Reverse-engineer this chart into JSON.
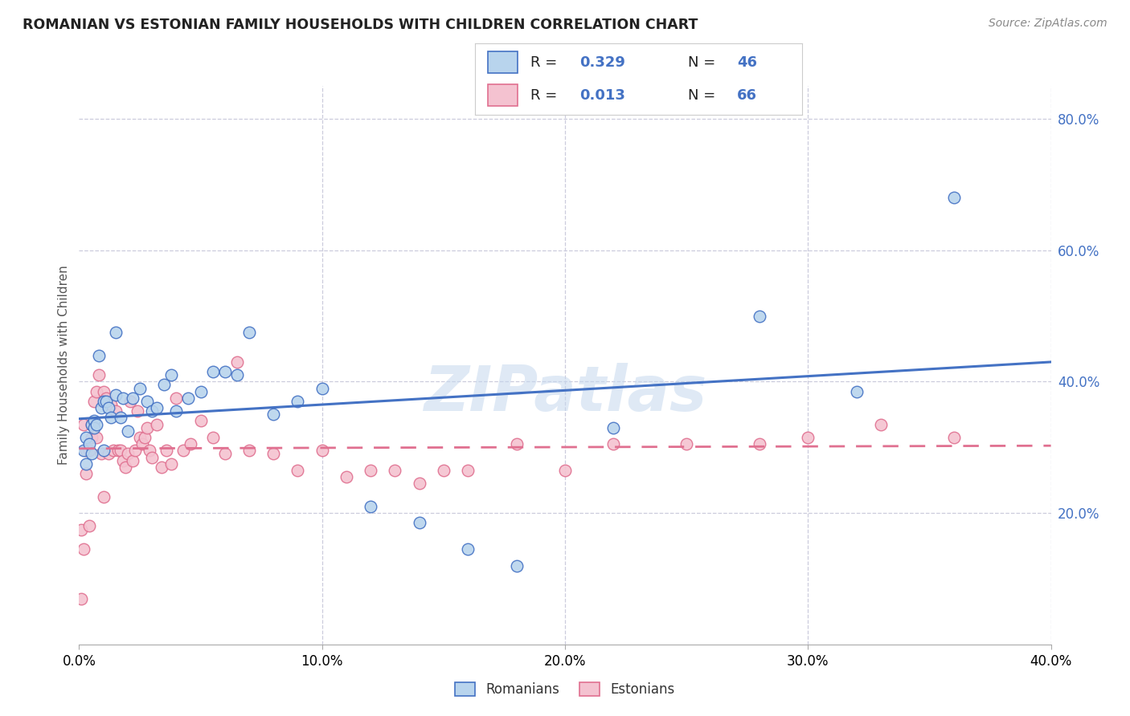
{
  "title": "ROMANIAN VS ESTONIAN FAMILY HOUSEHOLDS WITH CHILDREN CORRELATION CHART",
  "source": "Source: ZipAtlas.com",
  "ylabel": "Family Households with Children",
  "xlim": [
    0.0,
    0.4
  ],
  "ylim": [
    0.0,
    0.85
  ],
  "xtick_vals": [
    0.0,
    0.1,
    0.2,
    0.3,
    0.4
  ],
  "ytick_vals_right": [
    0.2,
    0.4,
    0.6,
    0.8
  ],
  "watermark": "ZIPatlas",
  "color_romanian_face": "#b8d4ed",
  "color_estonian_face": "#f4c2d0",
  "color_line_romanian": "#4472c4",
  "color_line_estonian": "#e07090",
  "background_color": "#ffffff",
  "grid_color": "#ccccdd",
  "romani_x": [
    0.002,
    0.003,
    0.003,
    0.004,
    0.005,
    0.005,
    0.006,
    0.006,
    0.007,
    0.008,
    0.009,
    0.01,
    0.01,
    0.011,
    0.012,
    0.013,
    0.015,
    0.015,
    0.017,
    0.018,
    0.02,
    0.022,
    0.025,
    0.028,
    0.03,
    0.032,
    0.035,
    0.038,
    0.04,
    0.045,
    0.05,
    0.055,
    0.06,
    0.065,
    0.07,
    0.08,
    0.09,
    0.1,
    0.12,
    0.14,
    0.16,
    0.18,
    0.22,
    0.28,
    0.32,
    0.36
  ],
  "romani_y": [
    0.295,
    0.275,
    0.315,
    0.305,
    0.29,
    0.335,
    0.34,
    0.33,
    0.335,
    0.44,
    0.36,
    0.295,
    0.37,
    0.37,
    0.36,
    0.345,
    0.475,
    0.38,
    0.345,
    0.375,
    0.325,
    0.375,
    0.39,
    0.37,
    0.355,
    0.36,
    0.395,
    0.41,
    0.355,
    0.375,
    0.385,
    0.415,
    0.415,
    0.41,
    0.475,
    0.35,
    0.37,
    0.39,
    0.21,
    0.185,
    0.145,
    0.12,
    0.33,
    0.5,
    0.385,
    0.68
  ],
  "estoni_x": [
    0.001,
    0.001,
    0.002,
    0.002,
    0.003,
    0.003,
    0.004,
    0.004,
    0.005,
    0.005,
    0.006,
    0.007,
    0.007,
    0.008,
    0.009,
    0.01,
    0.01,
    0.011,
    0.012,
    0.013,
    0.014,
    0.015,
    0.016,
    0.017,
    0.018,
    0.019,
    0.02,
    0.021,
    0.022,
    0.023,
    0.024,
    0.025,
    0.026,
    0.027,
    0.028,
    0.029,
    0.03,
    0.032,
    0.034,
    0.036,
    0.038,
    0.04,
    0.043,
    0.046,
    0.05,
    0.055,
    0.06,
    0.065,
    0.07,
    0.08,
    0.09,
    0.1,
    0.11,
    0.12,
    0.13,
    0.14,
    0.15,
    0.16,
    0.18,
    0.2,
    0.22,
    0.25,
    0.28,
    0.3,
    0.33,
    0.36
  ],
  "estoni_y": [
    0.07,
    0.175,
    0.145,
    0.335,
    0.26,
    0.295,
    0.18,
    0.295,
    0.335,
    0.315,
    0.37,
    0.315,
    0.385,
    0.41,
    0.29,
    0.225,
    0.385,
    0.375,
    0.29,
    0.365,
    0.295,
    0.355,
    0.295,
    0.295,
    0.28,
    0.27,
    0.29,
    0.37,
    0.28,
    0.295,
    0.355,
    0.315,
    0.305,
    0.315,
    0.33,
    0.295,
    0.285,
    0.335,
    0.27,
    0.295,
    0.275,
    0.375,
    0.295,
    0.305,
    0.34,
    0.315,
    0.29,
    0.43,
    0.295,
    0.29,
    0.265,
    0.295,
    0.255,
    0.265,
    0.265,
    0.245,
    0.265,
    0.265,
    0.305,
    0.265,
    0.305,
    0.305,
    0.305,
    0.315,
    0.335,
    0.315
  ]
}
